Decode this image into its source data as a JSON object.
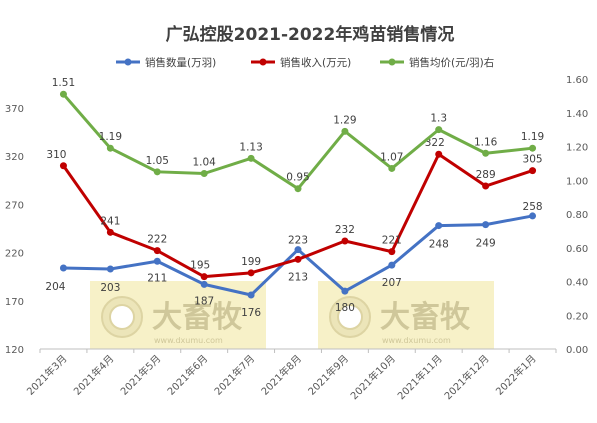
{
  "title": "广弘控股2021-2022年鸡苗销售情况",
  "colors": {
    "qty": "#4472C4",
    "revenue": "#C00000",
    "price": "#70AD47",
    "watermark_bg": "#f7f1c8",
    "grid": "#d9d9d9"
  },
  "watermark": {
    "text": "大畜牧",
    "url": "www.dxumu.com"
  },
  "chart_data": {
    "type": "line",
    "title": "广弘控股2021-2022年鸡苗销售情况",
    "categories": [
      "2021年3月",
      "2021年4月",
      "2021年5月",
      "2021年6月",
      "2021年7月",
      "2021年8月",
      "2021年9月",
      "2021年10月",
      "2021年11月",
      "2021年12月",
      "2022年1月"
    ],
    "left_axis": {
      "min": 120,
      "max": 400,
      "ticks": [
        120,
        170,
        220,
        270,
        320,
        370
      ]
    },
    "right_axis": {
      "min": 0,
      "max": 1.6,
      "ticks": [
        "0.00",
        "0.20",
        "0.40",
        "0.60",
        "0.80",
        "1.00",
        "1.20",
        "1.40",
        "1.60"
      ]
    },
    "series": [
      {
        "name": "销售数量(万羽)",
        "axis": "left",
        "color": "#4472C4",
        "values": [
          204,
          203,
          211,
          187,
          176,
          223,
          180,
          207,
          248,
          249,
          258
        ],
        "labels": [
          "204",
          "203",
          "211",
          "187",
          "176",
          "223",
          "180",
          "207",
          "248",
          "249",
          "258"
        ]
      },
      {
        "name": "销售收入(万元)",
        "axis": "left",
        "color": "#C00000",
        "values": [
          310,
          241,
          222,
          195,
          199,
          213,
          232,
          221,
          322,
          289,
          305
        ],
        "labels": [
          "310",
          "241",
          "222",
          "195",
          "199",
          "213",
          "232",
          "221",
          "322",
          "289",
          "305"
        ]
      },
      {
        "name": "销售均价(元/羽)右",
        "axis": "right",
        "color": "#70AD47",
        "values": [
          1.51,
          1.19,
          1.05,
          1.04,
          1.13,
          0.95,
          1.29,
          1.07,
          1.3,
          1.16,
          1.19
        ],
        "labels": [
          "1.51",
          "1.19",
          "1.05",
          "1.04",
          "1.13",
          "0.95",
          "1.29",
          "1.07",
          "1.3",
          "1.16",
          "1.19"
        ]
      }
    ],
    "legend": "top",
    "grid": false
  }
}
